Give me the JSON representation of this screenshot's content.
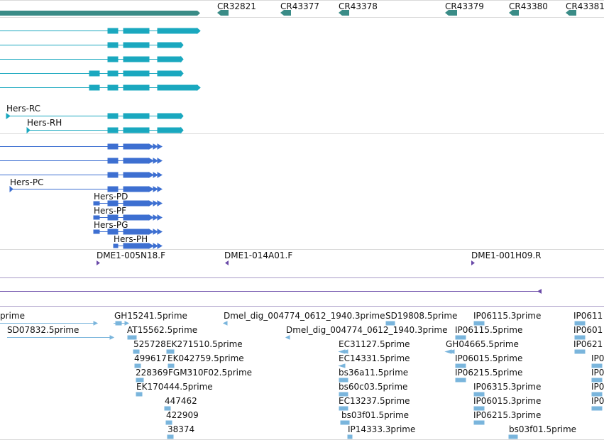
{
  "colors": {
    "gene_track": "#3a8c87",
    "transcript_rna": "#1aa8bf",
    "transcript_protein": "#3d6fd1",
    "clone_marker": "#6a4aa8",
    "est": "#7ab5dc",
    "divider": "#a89cc7",
    "grid": "#d9d9d9"
  },
  "gene_labels": [
    "CR32821",
    "CR43377",
    "CR43378",
    "CR43379",
    "CR43380",
    "CR43381"
  ],
  "rna_labels": [
    "Hers-RC",
    "Hers-RH"
  ],
  "protein_labels": [
    "Hers-PC",
    "Hers-PD",
    "Hers-PF",
    "Hers-PG",
    "Hers-PH"
  ],
  "clone_labels": [
    "DME1-005N18.F",
    "DME1-014A01.F",
    "DME1-001H09.R"
  ],
  "est_labels": [
    "prime",
    "GH15241.5prime",
    "Dmel_dig_004774_0612_1940.3prime",
    "SD19808.5prime",
    "IP06115.3prime",
    "IP0611",
    "SD07832.5prime",
    "AT15562.5prime",
    "Dmel_dig_004774_0612_1940.3prime",
    "IP06115.5prime",
    "IP0601",
    "525728",
    "EK271510.5prime",
    "EC31127.5prime",
    "GH04665.5prime",
    "IP0621",
    "499617",
    "EK042759.5prime",
    "EC14331.5prime",
    "IP06015.5prime",
    "IP0",
    "228369",
    "FGM310F02.5prime",
    "bs36a11.5prime",
    "IP06215.5prime",
    "IP0",
    "EK170444.5prime",
    "bs60c03.5prime",
    "IP06315.3prime",
    "IP0",
    "447462",
    "EC13237.5prime",
    "IP06015.3prime",
    "IP0",
    "422909",
    "bs03f01.5prime",
    "IP06215.3prime",
    "38374",
    "IP14333.3prime",
    "bs03f01.5prime"
  ]
}
